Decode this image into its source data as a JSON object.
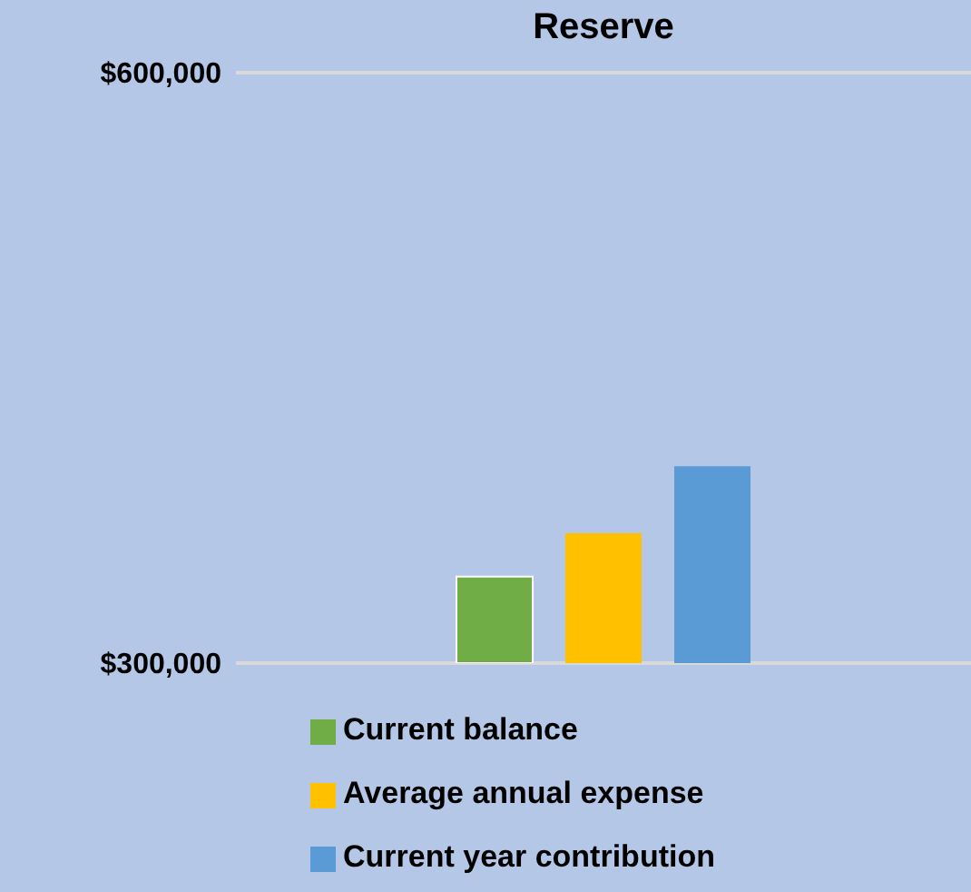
{
  "chart_data": {
    "type": "bar",
    "title": "Reserve",
    "categories": [
      null
    ],
    "series": [
      {
        "name": "Current balance",
        "color": "#70ad47",
        "values": [
          344000
        ]
      },
      {
        "name": "Average annual expense",
        "color": "#ffc000",
        "values": [
          366000
        ]
      },
      {
        "name": "Current year contribution",
        "color": "#5b9bd5",
        "values": [
          400000
        ]
      }
    ],
    "ylim": [
      300000,
      600000
    ],
    "yticks": [
      {
        "value": 300000,
        "label": "$300,000"
      },
      {
        "value": 600000,
        "label": "$600,000"
      }
    ],
    "grid": "y",
    "legend": "bottom"
  }
}
